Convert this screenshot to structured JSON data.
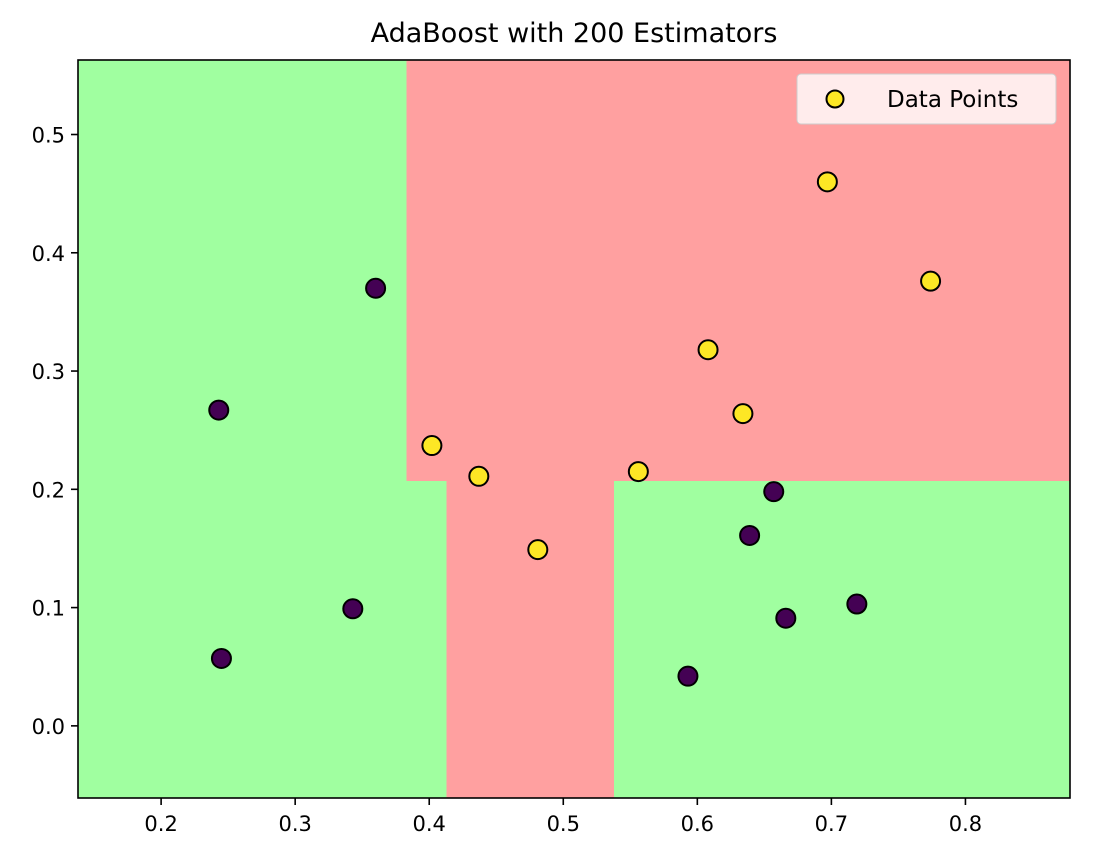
{
  "chart_data": {
    "type": "scatter",
    "title": "AdaBoost with 200 Estimators",
    "xlabel": "",
    "ylabel": "",
    "xlim": [
      0.138,
      0.878
    ],
    "ylim": [
      -0.061,
      0.563
    ],
    "x_ticks": [
      0.2,
      0.3,
      0.4,
      0.5,
      0.6,
      0.7,
      0.8
    ],
    "x_tick_labels": [
      "0.2",
      "0.3",
      "0.4",
      "0.5",
      "0.6",
      "0.7",
      "0.8"
    ],
    "y_ticks": [
      0.0,
      0.1,
      0.2,
      0.3,
      0.4,
      0.5
    ],
    "y_tick_labels": [
      "0.0",
      "0.1",
      "0.2",
      "0.3",
      "0.4",
      "0.5"
    ],
    "grid": false,
    "legend": {
      "position": "top-right",
      "entries": [
        "Data Points"
      ]
    },
    "decision_regions": [
      {
        "class": "green",
        "x": [
          0.138,
          0.383
        ],
        "y": [
          0.207,
          0.563
        ]
      },
      {
        "class": "green",
        "x": [
          0.138,
          0.413
        ],
        "y": [
          -0.061,
          0.207
        ]
      },
      {
        "class": "red",
        "x": [
          0.383,
          0.878
        ],
        "y": [
          0.207,
          0.563
        ]
      },
      {
        "class": "red",
        "x": [
          0.413,
          0.538
        ],
        "y": [
          -0.061,
          0.207
        ]
      },
      {
        "class": "green",
        "x": [
          0.538,
          0.878
        ],
        "y": [
          -0.061,
          0.207
        ]
      }
    ],
    "points": [
      {
        "x": 0.243,
        "y": 0.267,
        "class": 0
      },
      {
        "x": 0.245,
        "y": 0.057,
        "class": 0
      },
      {
        "x": 0.343,
        "y": 0.099,
        "class": 0
      },
      {
        "x": 0.36,
        "y": 0.37,
        "class": 0
      },
      {
        "x": 0.593,
        "y": 0.042,
        "class": 0
      },
      {
        "x": 0.639,
        "y": 0.161,
        "class": 0
      },
      {
        "x": 0.657,
        "y": 0.198,
        "class": 0
      },
      {
        "x": 0.666,
        "y": 0.091,
        "class": 0
      },
      {
        "x": 0.719,
        "y": 0.103,
        "class": 0
      },
      {
        "x": 0.402,
        "y": 0.237,
        "class": 1
      },
      {
        "x": 0.437,
        "y": 0.211,
        "class": 1
      },
      {
        "x": 0.481,
        "y": 0.149,
        "class": 1
      },
      {
        "x": 0.556,
        "y": 0.215,
        "class": 1
      },
      {
        "x": 0.608,
        "y": 0.318,
        "class": 1
      },
      {
        "x": 0.634,
        "y": 0.264,
        "class": 1
      },
      {
        "x": 0.697,
        "y": 0.46,
        "class": 1
      },
      {
        "x": 0.774,
        "y": 0.376,
        "class": 1
      }
    ],
    "colors": {
      "region_green": "#a0ffa0",
      "region_red": "#ffa0a0",
      "class_0": "#440154",
      "class_1": "#fde725",
      "marker_edge": "#000000"
    }
  }
}
